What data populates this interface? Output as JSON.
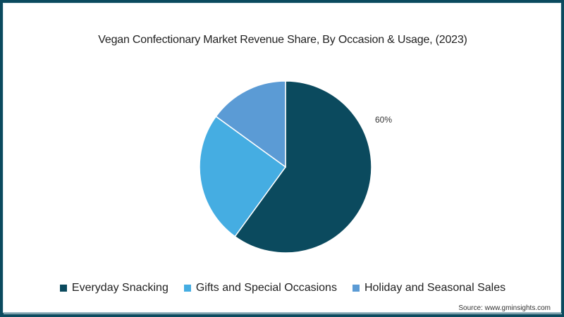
{
  "title": "Vegan Confectionary Market Revenue Share, By Occasion & Usage, (2023)",
  "label_everyday": "60%",
  "source": "Source: www.gminsights.com",
  "legend": [
    {
      "label": "Everyday Snacking",
      "color": "#0b4a5e"
    },
    {
      "label": "Gifts and Special Occasions",
      "color": "#45ade2"
    },
    {
      "label": "Holiday and Seasonal Sales",
      "color": "#5b9bd5"
    }
  ],
  "chart_data": {
    "type": "pie",
    "title": "Vegan Confectionary Market Revenue Share, By Occasion & Usage, (2023)",
    "categories": [
      "Everyday Snacking",
      "Gifts and Special Occasions",
      "Holiday and Seasonal Sales"
    ],
    "values": [
      60,
      25,
      15
    ],
    "unit": "%",
    "colors": [
      "#0b4a5e",
      "#45ade2",
      "#5b9bd5"
    ],
    "data_labels": {
      "Everyday Snacking": "60%"
    },
    "legend_position": "bottom",
    "start_angle": "12 o'clock, clockwise"
  }
}
